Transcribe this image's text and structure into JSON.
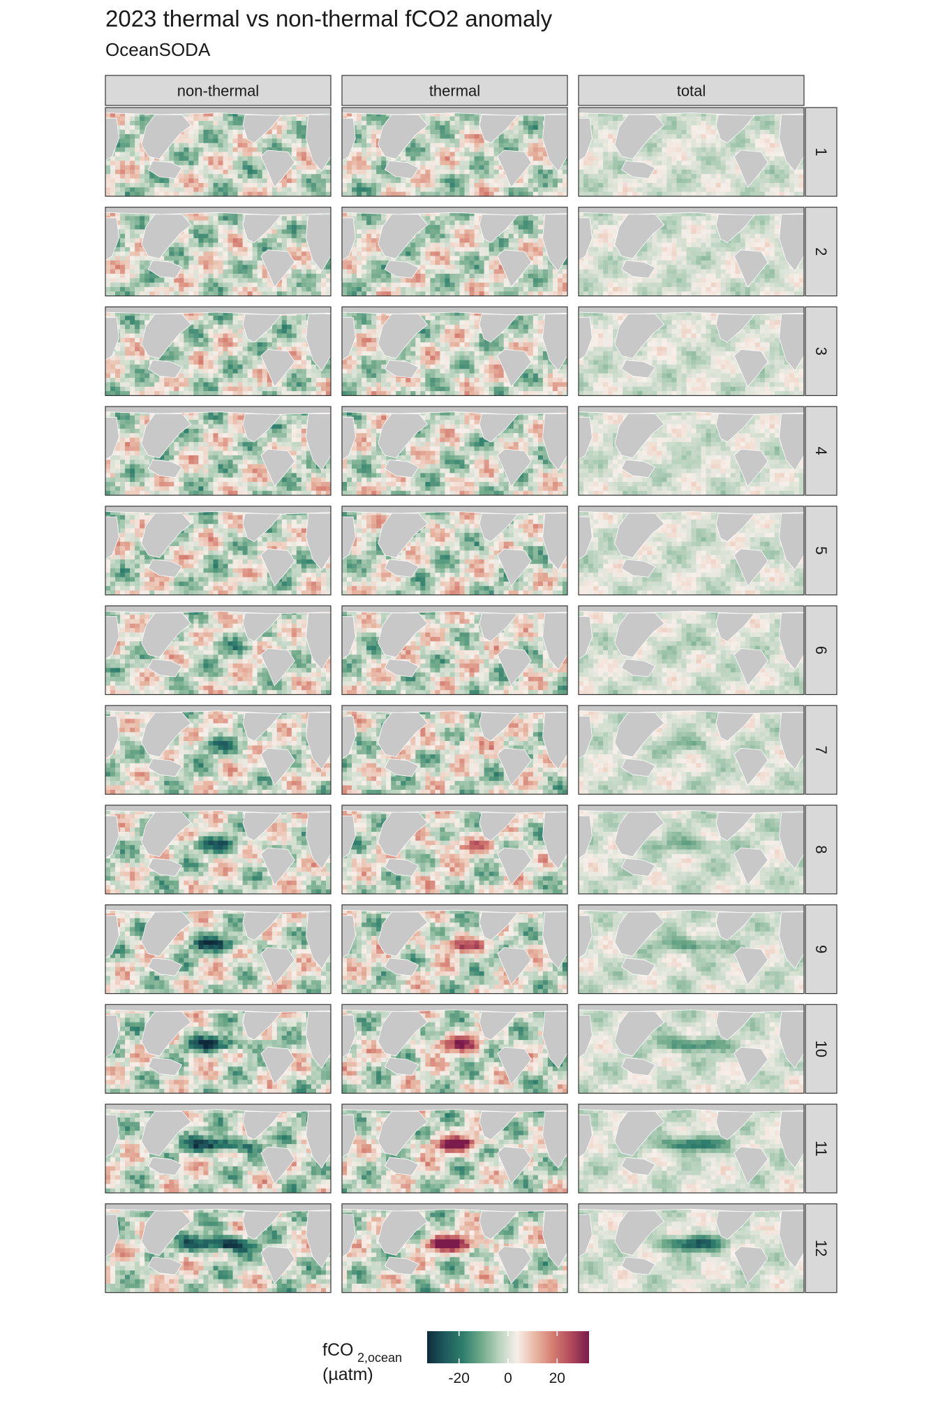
{
  "title": "2023 thermal vs non-thermal fCO2 anomaly",
  "subtitle": "OceanSODA",
  "chart_data": {
    "type": "heatmap",
    "title": "2023 thermal vs non-thermal fCO2 anomaly",
    "subtitle": "OceanSODA",
    "facet_columns": [
      "non-thermal",
      "thermal",
      "total"
    ],
    "facet_rows": [
      "1",
      "2",
      "3",
      "4",
      "5",
      "6",
      "7",
      "8",
      "9",
      "10",
      "11",
      "12"
    ],
    "panel_content": "gridded global ocean map of fCO2 anomaly; continents shown in grey",
    "colorbar": {
      "label_main": "fCO",
      "label_sub": "2,ocean",
      "label_unit": "(µatm)",
      "ticks": [
        "-20",
        "0",
        "20"
      ],
      "tick_values": [
        -20,
        0,
        20
      ],
      "range": [
        -33,
        33
      ],
      "colors": [
        "#0f2b3b",
        "#1f5a5e",
        "#2e7e6c",
        "#6fa98a",
        "#b9d3bf",
        "#f6efe9",
        "#e8b7a3",
        "#d47c70",
        "#b04a5c",
        "#7a1b4c"
      ]
    },
    "colors": {
      "land": "#c8c8c8",
      "strip": "#d9d9d9",
      "panel_border": "#333333"
    }
  }
}
